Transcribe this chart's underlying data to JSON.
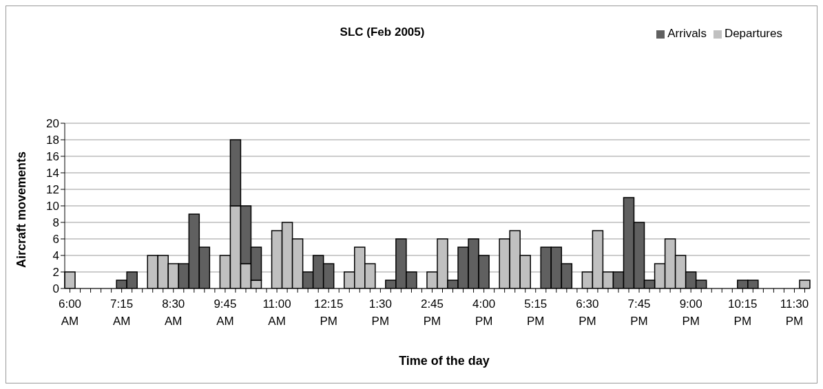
{
  "chart_data": {
    "type": "bar",
    "title": "SLC (Feb 2005)",
    "xlabel": "Time of the day",
    "ylabel": "Aircraft movements",
    "categories": [
      "6:00 AM",
      null,
      null,
      null,
      null,
      "7:15 AM",
      null,
      null,
      null,
      null,
      "8:30 AM",
      null,
      null,
      null,
      null,
      "9:45 AM",
      null,
      null,
      null,
      null,
      "11:00 AM",
      null,
      null,
      null,
      null,
      "12:15 PM",
      null,
      null,
      null,
      null,
      "1:30 PM",
      null,
      null,
      null,
      null,
      "2:45 PM",
      null,
      null,
      null,
      null,
      "4:00 PM",
      null,
      null,
      null,
      null,
      "5:15 PM",
      null,
      null,
      null,
      null,
      "6:30 PM",
      null,
      null,
      null,
      null,
      "7:45 PM",
      null,
      null,
      null,
      null,
      "9:00 PM",
      null,
      null,
      null,
      null,
      "10:15 PM",
      null,
      null,
      null,
      null,
      "11:30 PM",
      null
    ],
    "stacked": true,
    "series": [
      {
        "name": "Departures",
        "color": "#c0c0c0",
        "values": [
          2,
          0,
          0,
          0,
          0,
          0,
          0,
          0,
          4,
          4,
          3,
          0,
          0,
          0,
          0,
          4,
          10,
          3,
          1,
          0,
          7,
          8,
          6,
          0,
          0,
          0,
          0,
          2,
          5,
          3,
          0,
          0,
          0,
          0,
          0,
          2,
          6,
          0,
          0,
          0,
          0,
          0,
          6,
          7,
          4,
          0,
          0,
          0,
          0,
          0,
          2,
          7,
          2,
          0,
          0,
          0,
          0,
          3,
          6,
          4,
          0,
          0,
          0,
          0,
          0,
          0,
          0,
          0,
          0,
          0,
          0,
          1
        ]
      },
      {
        "name": "Arrivals",
        "color": "#606060",
        "values": [
          0,
          0,
          0,
          0,
          0,
          1,
          2,
          0,
          0,
          0,
          0,
          3,
          9,
          5,
          0,
          0,
          8,
          7,
          4,
          0,
          0,
          0,
          0,
          2,
          4,
          3,
          0,
          0,
          0,
          0,
          0,
          1,
          6,
          2,
          0,
          0,
          0,
          1,
          5,
          6,
          4,
          0,
          0,
          0,
          0,
          0,
          5,
          5,
          3,
          0,
          0,
          0,
          0,
          2,
          11,
          8,
          1,
          0,
          0,
          0,
          2,
          1,
          0,
          0,
          0,
          1,
          1,
          0,
          0,
          0,
          0,
          0
        ]
      }
    ],
    "ylim": [
      0,
      20
    ],
    "yticks": [
      0,
      2,
      4,
      6,
      8,
      10,
      12,
      14,
      16,
      18,
      20
    ],
    "grid": "y",
    "legend": "top right"
  }
}
